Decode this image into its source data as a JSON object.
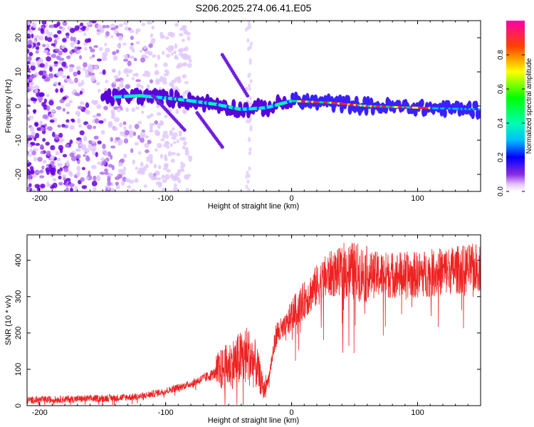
{
  "page_title": "S206.2025.274.06.41.E05",
  "chart_data": [
    {
      "type": "heatmap",
      "title": "S206.2025.274.06.41.E05",
      "xlabel": "Height of straight line (km)",
      "ylabel": "Frequency (Hz)",
      "xlim": [
        -210,
        150
      ],
      "ylim": [
        -25,
        25
      ],
      "xticks": [
        -200,
        -100,
        0,
        100
      ],
      "yticks": [
        -20,
        -10,
        0,
        10,
        20
      ],
      "colorbar": {
        "label": "Normalized spectral amplitude",
        "range": [
          0,
          1
        ],
        "ticks": [
          "0.0",
          "0.2",
          "0.4",
          "0.6",
          "0.8"
        ]
      },
      "features": {
        "noise_region_x": [
          -210,
          -100
        ],
        "signal_band_start_x": -150,
        "signal_band_center_hz": [
          [
            -150,
            2.5
          ],
          [
            -120,
            3.0
          ],
          [
            -90,
            2.0
          ],
          [
            -60,
            0.5
          ],
          [
            -40,
            -1.0
          ],
          [
            -20,
            -0.5
          ],
          [
            0,
            1.5
          ],
          [
            30,
            1.0
          ],
          [
            60,
            0.0
          ],
          [
            100,
            -0.5
          ],
          [
            150,
            -1.0
          ]
        ]
      },
      "colors": {
        "ramp": [
          "#ffffff",
          "#7b00ff",
          "#0000ff",
          "#00e5ff",
          "#00ff00",
          "#ffff00",
          "#ff0000"
        ]
      }
    },
    {
      "type": "line",
      "xlabel": "Height of straight line (km)",
      "ylabel": "SNR (10 * v/v)",
      "xlim": [
        -210,
        150
      ],
      "ylim": [
        0,
        470
      ],
      "xticks": [
        -200,
        -100,
        0,
        100
      ],
      "yticks": [
        0,
        100,
        200,
        300,
        400
      ],
      "series": [
        {
          "name": "SNR",
          "color": "#ee2222",
          "trend_x": [
            -210,
            -150,
            -120,
            -100,
            -80,
            -60,
            -45,
            -35,
            -28,
            -22,
            -18,
            -12,
            -5,
            0,
            10,
            20,
            30,
            40,
            50,
            60,
            80,
            100,
            120,
            150
          ],
          "trend_y": [
            15,
            20,
            25,
            40,
            60,
            90,
            120,
            140,
            110,
            40,
            80,
            200,
            210,
            250,
            290,
            330,
            360,
            370,
            370,
            360,
            360,
            360,
            370,
            380
          ]
        }
      ]
    }
  ]
}
